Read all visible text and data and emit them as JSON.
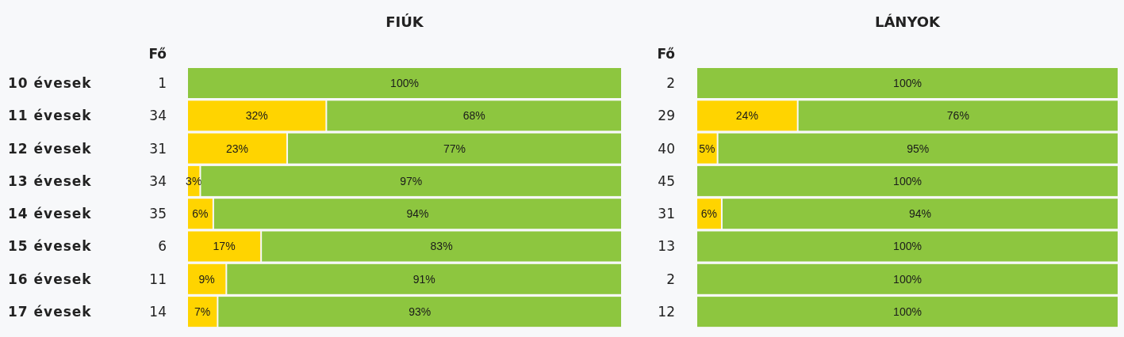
{
  "chart_data": [
    {
      "type": "bar",
      "orientation": "horizontal",
      "stacked": true,
      "title": "FIÚK",
      "ylabel": "Fő",
      "tick_labels": "y",
      "categories": [
        "10 évesek",
        "11 évesek",
        "12 évesek",
        "13 évesek",
        "14 évesek",
        "15 évesek",
        "16 évesek",
        "17 évesek"
      ],
      "annotations": [
        "1",
        "34",
        "31",
        "34",
        "35",
        "6",
        "11",
        "14"
      ],
      "series": [
        {
          "color": "#ffd400",
          "values": [
            0,
            32,
            23,
            3,
            6,
            17,
            9,
            7
          ],
          "value_labels": [
            null,
            "32%",
            "23%",
            "3%",
            "6%",
            "17%",
            "9%",
            "7%"
          ]
        },
        {
          "color": "#8dc63f",
          "values": [
            100,
            68,
            77,
            97,
            94,
            83,
            91,
            93
          ],
          "value_labels": [
            "100%",
            "68%",
            "77%",
            "97%",
            "94%",
            "83%",
            "91%",
            "93%"
          ]
        }
      ]
    },
    {
      "type": "bar",
      "orientation": "horizontal",
      "stacked": true,
      "title": "LÁNYOK",
      "ylabel": "Fő",
      "tick_labels": "y",
      "categories": [
        "2",
        "29",
        "40",
        "45",
        "31",
        "13",
        "2",
        "12"
      ],
      "series": [
        {
          "color": "#ffd400",
          "values": [
            0,
            24,
            5,
            0,
            6,
            0,
            0,
            0
          ],
          "value_labels": [
            null,
            "24%",
            "5%",
            null,
            "6%",
            null,
            null,
            null
          ]
        },
        {
          "color": "#8dc63f",
          "values": [
            100,
            76,
            95,
            100,
            94,
            100,
            100,
            100
          ],
          "value_labels": [
            "100%",
            "76%",
            "95%",
            "100%",
            "94%",
            "100%",
            "100%",
            "100%"
          ]
        }
      ]
    }
  ]
}
